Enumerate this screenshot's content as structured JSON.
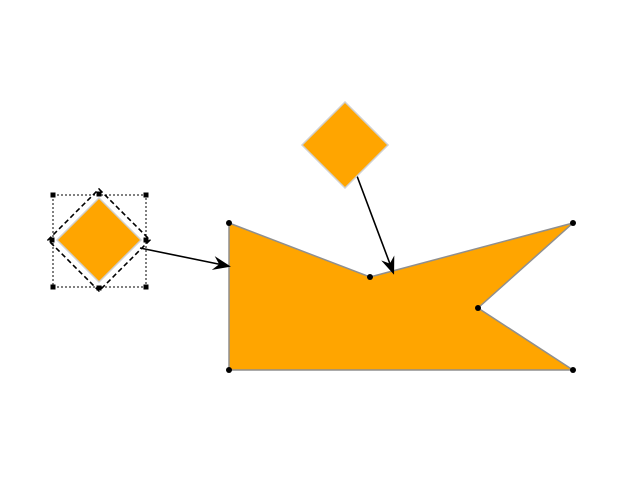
{
  "canvas": {
    "background": "#ffffff"
  },
  "shapes": {
    "fill_color": "#ffa500",
    "stroke_color": "#8f8f8f",
    "diamond_stroke_color": "#d0d0d0",
    "connector_color": "#000000",
    "vertex_color": "#000000",
    "selection_color": "#000000",
    "items": [
      {
        "kind": "diamond",
        "role": "selected-source"
      },
      {
        "kind": "diamond",
        "role": "source"
      },
      {
        "kind": "polygon",
        "role": "target",
        "vertex_markers": 6
      }
    ],
    "connectors": [
      {
        "from": "selected-source",
        "to": "target",
        "arrow": "filled-open"
      },
      {
        "from": "source",
        "to": "target",
        "arrow": "filled-open"
      }
    ]
  }
}
